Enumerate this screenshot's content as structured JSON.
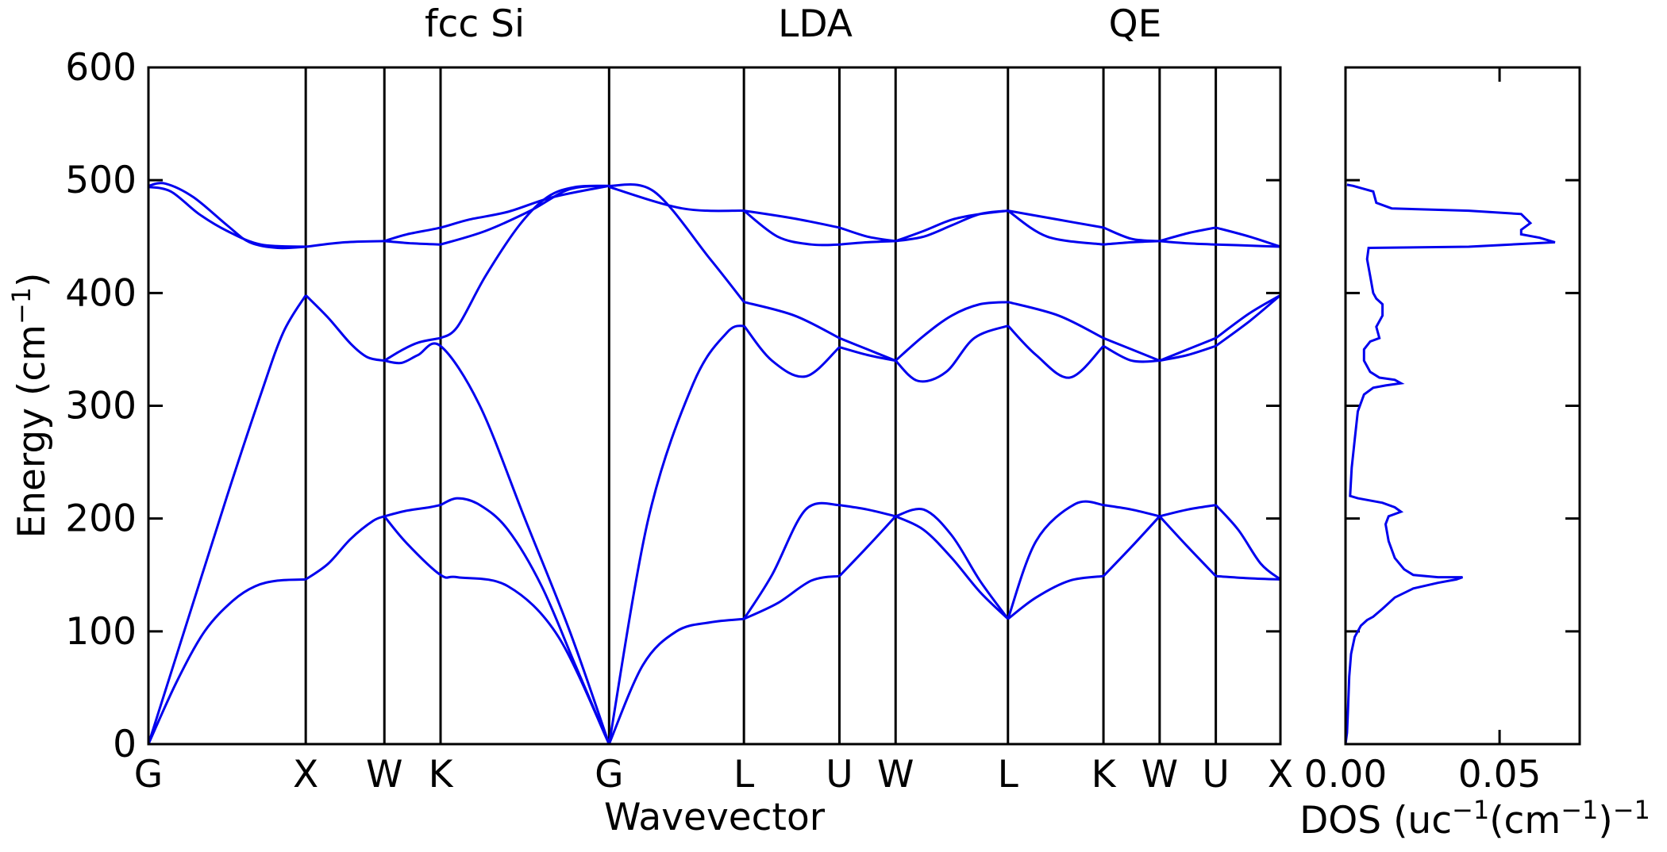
{
  "chart_data": [
    {
      "type": "line",
      "panel": "band-structure",
      "title_parts": [
        "fcc Si",
        "LDA",
        "QE"
      ],
      "xlabel": "Wavevector",
      "ylabel_prefix": "Energy (cm",
      "ylabel_sup": "−1",
      "ylabel_suffix": ")",
      "ylim": [
        0,
        600
      ],
      "yticks": [
        0,
        100,
        200,
        300,
        400,
        500,
        600
      ],
      "xlim": [
        0,
        20.15
      ],
      "high_symmetry_points": [
        {
          "label": "G",
          "x": 0
        },
        {
          "label": "X",
          "x": 2.8
        },
        {
          "label": "W",
          "x": 4.2
        },
        {
          "label": "K",
          "x": 5.2
        },
        {
          "label": "G",
          "x": 8.2
        },
        {
          "label": "L",
          "x": 10.6
        },
        {
          "label": "U",
          "x": 12.3
        },
        {
          "label": "W",
          "x": 13.3
        },
        {
          "label": "L",
          "x": 15.3
        },
        {
          "label": "K",
          "x": 17.0
        },
        {
          "label": "W",
          "x": 18.0
        },
        {
          "label": "U",
          "x": 19.0
        },
        {
          "label": "X",
          "x": 20.15
        }
      ],
      "line_color": "#0000ee",
      "grid": false,
      "legend": "none",
      "series": [
        {
          "x": [
            0,
            0.5,
            1.0,
            1.5,
            1.9,
            2.3,
            2.8
          ],
          "y": [
            0,
            55,
            100,
            127,
            140,
            145,
            146
          ]
        },
        {
          "x": [
            2.8,
            3.2,
            3.6,
            4.0,
            4.2
          ],
          "y": [
            146,
            160,
            182,
            198,
            202
          ]
        },
        {
          "x": [
            4.2,
            4.6,
            5.0,
            5.2
          ],
          "y": [
            202,
            207,
            210,
            212
          ]
        },
        {
          "x": [
            5.2,
            5.5,
            5.9,
            6.4,
            7.0,
            7.6,
            8.2
          ],
          "y": [
            212,
            218,
            212,
            190,
            140,
            70,
            0
          ]
        },
        {
          "x": [
            0,
            0.7,
            1.4,
            2.0,
            2.4,
            2.8
          ],
          "y": [
            0,
            110,
            220,
            310,
            365,
            398
          ]
        },
        {
          "x": [
            2.8,
            3.2,
            3.6,
            3.9,
            4.2
          ],
          "y": [
            398,
            378,
            355,
            343,
            340
          ]
        },
        {
          "x": [
            4.2,
            4.5,
            4.8,
            5.2
          ],
          "y": [
            340,
            349,
            356,
            360
          ]
        },
        {
          "x": [
            5.2,
            5.5,
            6.0,
            6.6,
            7.1,
            7.6,
            8.2
          ],
          "y": [
            360,
            370,
            415,
            460,
            485,
            494,
            495
          ]
        },
        {
          "x": [
            0,
            0.3,
            0.8,
            1.4,
            1.8,
            2.3,
            2.8
          ],
          "y": [
            495,
            497,
            485,
            460,
            445,
            440,
            441
          ]
        },
        {
          "x": [
            2.8,
            3.5,
            4.2
          ],
          "y": [
            441,
            445,
            446
          ]
        },
        {
          "x": [
            4.2,
            4.7,
            5.2
          ],
          "y": [
            446,
            444,
            443
          ]
        },
        {
          "x": [
            5.2,
            6.0,
            6.8,
            7.5,
            8.2
          ],
          "y": [
            443,
            455,
            473,
            492,
            495
          ]
        },
        {
          "x": [
            0,
            0.4,
            0.9,
            1.4,
            2.0,
            2.8
          ],
          "y": [
            494,
            490,
            470,
            455,
            443,
            441
          ]
        },
        {
          "x": [
            4.2,
            4.6,
            5.2,
            5.7,
            6.4,
            7.2,
            8.2
          ],
          "y": [
            446,
            452,
            458,
            465,
            472,
            485,
            495
          ]
        },
        {
          "x": [
            4.2,
            4.5,
            4.8,
            5.2,
            5.9,
            6.7,
            7.5,
            8.2
          ],
          "y": [
            340,
            338,
            345,
            353,
            300,
            200,
            100,
            0
          ]
        },
        {
          "x": [
            4.2,
            4.6,
            5.2,
            5.5,
            6.4,
            7.3,
            8.2
          ],
          "y": [
            202,
            178,
            150,
            148,
            140,
            95,
            0
          ]
        },
        {
          "x": [
            8.2,
            8.8,
            9.4,
            10.0,
            10.6
          ],
          "y": [
            0,
            70,
            100,
            108,
            111
          ]
        },
        {
          "x": [
            8.2,
            8.9,
            9.7,
            10.3,
            10.6
          ],
          "y": [
            0,
            200,
            320,
            365,
            371
          ]
        },
        {
          "x": [
            8.2,
            9.0,
            10.0,
            10.6
          ],
          "y": [
            495,
            490,
            430,
            392
          ]
        },
        {
          "x": [
            8.2,
            9.5,
            10.6
          ],
          "y": [
            494,
            475,
            473
          ]
        },
        {
          "x": [
            10.6,
            11.2,
            11.8,
            12.3
          ],
          "y": [
            111,
            125,
            145,
            149
          ]
        },
        {
          "x": [
            10.6,
            11.1,
            11.7,
            12.3
          ],
          "y": [
            111,
            150,
            208,
            212
          ]
        },
        {
          "x": [
            10.6,
            11.1,
            11.7,
            12.3
          ],
          "y": [
            371,
            340,
            326,
            352
          ]
        },
        {
          "x": [
            10.6,
            11.5,
            12.3
          ],
          "y": [
            392,
            380,
            360
          ]
        },
        {
          "x": [
            10.6,
            11.2,
            11.8,
            12.3
          ],
          "y": [
            473,
            450,
            443,
            443
          ]
        },
        {
          "x": [
            10.6,
            11.5,
            12.3
          ],
          "y": [
            473,
            466,
            458
          ]
        },
        {
          "x": [
            12.3,
            12.8,
            13.3
          ],
          "y": [
            149,
            175,
            202
          ]
        },
        {
          "x": [
            12.3,
            12.8,
            13.3
          ],
          "y": [
            212,
            208,
            202
          ]
        },
        {
          "x": [
            12.3,
            12.8,
            13.3
          ],
          "y": [
            352,
            345,
            340
          ]
        },
        {
          "x": [
            12.3,
            12.8,
            13.3
          ],
          "y": [
            360,
            350,
            340
          ]
        },
        {
          "x": [
            12.3,
            12.8,
            13.3
          ],
          "y": [
            443,
            445,
            446
          ]
        },
        {
          "x": [
            12.3,
            12.8,
            13.3
          ],
          "y": [
            458,
            450,
            446
          ]
        },
        {
          "x": [
            13.3,
            13.8,
            14.3,
            14.8,
            15.3
          ],
          "y": [
            202,
            208,
            185,
            145,
            111
          ]
        },
        {
          "x": [
            13.3,
            13.8,
            14.3,
            14.8,
            15.3
          ],
          "y": [
            202,
            190,
            165,
            135,
            111
          ]
        },
        {
          "x": [
            13.3,
            13.7,
            14.2,
            14.7,
            15.3
          ],
          "y": [
            340,
            322,
            330,
            360,
            371
          ]
        },
        {
          "x": [
            13.3,
            13.8,
            14.3,
            14.8,
            15.3
          ],
          "y": [
            340,
            362,
            380,
            390,
            392
          ]
        },
        {
          "x": [
            13.3,
            13.8,
            14.3,
            14.8,
            15.3
          ],
          "y": [
            446,
            450,
            460,
            470,
            473
          ]
        },
        {
          "x": [
            13.3,
            13.8,
            14.3,
            14.8,
            15.3
          ],
          "y": [
            446,
            455,
            465,
            470,
            473
          ]
        },
        {
          "x": [
            15.3,
            15.8,
            16.4,
            17.0
          ],
          "y": [
            111,
            130,
            145,
            149
          ]
        },
        {
          "x": [
            15.3,
            15.8,
            16.5,
            17.0
          ],
          "y": [
            111,
            180,
            213,
            212
          ]
        },
        {
          "x": [
            15.3,
            15.8,
            16.4,
            17.0
          ],
          "y": [
            371,
            345,
            325,
            353
          ]
        },
        {
          "x": [
            15.3,
            16.2,
            17.0
          ],
          "y": [
            392,
            380,
            360
          ]
        },
        {
          "x": [
            15.3,
            16.0,
            17.0
          ],
          "y": [
            473,
            450,
            443
          ]
        },
        {
          "x": [
            15.3,
            16.2,
            17.0
          ],
          "y": [
            473,
            465,
            458
          ]
        },
        {
          "x": [
            17.0,
            17.5,
            18.0
          ],
          "y": [
            149,
            175,
            202
          ]
        },
        {
          "x": [
            17.0,
            17.5,
            18.0
          ],
          "y": [
            212,
            208,
            202
          ]
        },
        {
          "x": [
            17.0,
            17.5,
            18.0
          ],
          "y": [
            353,
            340,
            340
          ]
        },
        {
          "x": [
            17.0,
            17.5,
            18.0
          ],
          "y": [
            360,
            350,
            340
          ]
        },
        {
          "x": [
            17.0,
            17.5,
            18.0
          ],
          "y": [
            443,
            445,
            446
          ]
        },
        {
          "x": [
            17.0,
            17.5,
            18.0
          ],
          "y": [
            458,
            448,
            446
          ]
        },
        {
          "x": [
            18.0,
            18.5,
            19.0
          ],
          "y": [
            202,
            175,
            149
          ]
        },
        {
          "x": [
            18.0,
            18.5,
            19.0
          ],
          "y": [
            202,
            208,
            212
          ]
        },
        {
          "x": [
            18.0,
            18.5,
            19.0
          ],
          "y": [
            340,
            345,
            353
          ]
        },
        {
          "x": [
            18.0,
            18.5,
            19.0
          ],
          "y": [
            340,
            350,
            360
          ]
        },
        {
          "x": [
            18.0,
            18.5,
            19.0
          ],
          "y": [
            446,
            444,
            443
          ]
        },
        {
          "x": [
            18.0,
            18.5,
            19.0
          ],
          "y": [
            446,
            453,
            458
          ]
        },
        {
          "x": [
            19.0,
            19.6,
            20.15
          ],
          "y": [
            149,
            147,
            146
          ]
        },
        {
          "x": [
            19.0,
            19.4,
            19.8,
            20.15
          ],
          "y": [
            212,
            190,
            160,
            146
          ]
        },
        {
          "x": [
            19.0,
            19.6,
            20.15
          ],
          "y": [
            353,
            375,
            398
          ]
        },
        {
          "x": [
            19.0,
            19.6,
            20.15
          ],
          "y": [
            360,
            382,
            398
          ]
        },
        {
          "x": [
            19.0,
            19.6,
            20.15
          ],
          "y": [
            443,
            442,
            441
          ]
        },
        {
          "x": [
            19.0,
            19.6,
            20.15
          ],
          "y": [
            458,
            450,
            441
          ]
        }
      ]
    },
    {
      "type": "line",
      "panel": "density-of-states",
      "xlabel_prefix": "DOS (uc",
      "xlabel_sup1": "−1",
      "xlabel_mid": "(cm",
      "xlabel_sup2": "−1",
      "xlabel_suffix": ")",
      "xlabel_sup3": "−1",
      "xticks": [
        "0.00",
        "0.05"
      ],
      "xtick_values": [
        0.0,
        0.05
      ],
      "xlim": [
        0,
        0.076
      ],
      "ylim": [
        0,
        600
      ],
      "line_color": "#0000ee",
      "dos": [
        0,
        0,
        0.0005,
        10,
        0.0008,
        30,
        0.0012,
        60,
        0.0018,
        80,
        0.003,
        95,
        0.005,
        105,
        0.007,
        110,
        0.009,
        113,
        0.012,
        120,
        0.016,
        130,
        0.022,
        138,
        0.03,
        143,
        0.036,
        146,
        0.038,
        148,
        0.03,
        148,
        0.022,
        150,
        0.019,
        155,
        0.016,
        165,
        0.014,
        180,
        0.013,
        195,
        0.014,
        202,
        0.018,
        206,
        0.016,
        210,
        0.012,
        214,
        0.004,
        218,
        0.0015,
        220,
        0.002,
        245,
        0.003,
        270,
        0.004,
        295,
        0.006,
        310,
        0.009,
        316,
        0.013,
        318,
        0.018,
        320,
        0.016,
        323,
        0.011,
        325,
        0.008,
        330,
        0.006,
        340,
        0.006,
        350,
        0.008,
        357,
        0.011,
        360,
        0.01,
        370,
        0.012,
        380,
        0.012,
        390,
        0.01,
        395,
        0.009,
        400,
        0.008,
        415,
        0.007,
        430,
        0.0075,
        440,
        0.04,
        441,
        0.068,
        445,
        0.063,
        449,
        0.057,
        452,
        0.057,
        456,
        0.06,
        462,
        0.057,
        470,
        0.04,
        473,
        0.015,
        475,
        0.01,
        480,
        0.009,
        490,
        0.005,
        493,
        0.0025,
        495,
        0.0005,
        496
      ]
    }
  ]
}
